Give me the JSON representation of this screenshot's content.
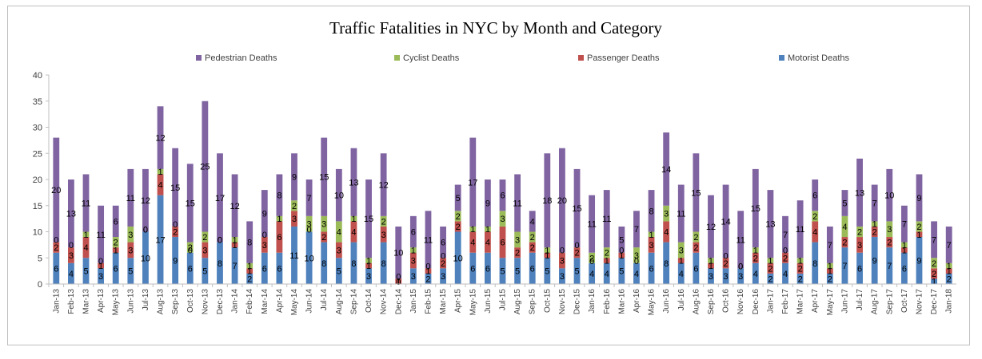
{
  "chart_data": {
    "type": "bar",
    "stacked": true,
    "title": "Traffic Fatalities  in NYC by Month and Category",
    "xlabel": "",
    "ylabel": "",
    "ylim": [
      0,
      40
    ],
    "yticks": [
      0,
      5,
      10,
      15,
      20,
      25,
      30,
      35,
      40
    ],
    "grid": false,
    "legend_position": "top",
    "legend_order": [
      "Pedestrian Deaths",
      "Cyclist Deaths",
      "Passenger Deaths",
      "Motorist Deaths"
    ],
    "categories": [
      "Jan-13",
      "Feb-13",
      "Mar-13",
      "Apr-13",
      "May-13",
      "Jun-13",
      "Jul-13",
      "Aug-13",
      "Sep-13",
      "Oct-13",
      "Nov-13",
      "Dec-13",
      "Jan-14",
      "Feb-14",
      "Mar-14",
      "Apr-14",
      "May-14",
      "Jun-14",
      "Jul-14",
      "Aug-14",
      "Sep-14",
      "Oct-14",
      "Nov-14",
      "Dec-14",
      "Jan-15",
      "Feb-15",
      "Mar-15",
      "Apr-15",
      "May-15",
      "Jun-15",
      "Jul-15",
      "Aug-15",
      "Sep-15",
      "Oct-15",
      "Nov-15",
      "Dec-15",
      "Jan-16",
      "Feb-16",
      "Mar-16",
      "Apr-16",
      "May-16",
      "Jun-16",
      "Jul-16",
      "Aug-16",
      "Sep-16",
      "Oct-16",
      "Nov-16",
      "Dec-16",
      "Jan-17",
      "Feb-17",
      "Mar-17",
      "Apr-17",
      "May-17",
      "Jun-17",
      "Jul-17",
      "Aug-17",
      "Sep-17",
      "Oct-17",
      "Nov-17",
      "Dec-17",
      "Jan-18"
    ],
    "series": [
      {
        "name": "Motorist Deaths",
        "color": "#4f81bd",
        "values": [
          6,
          4,
          5,
          3,
          6,
          5,
          10,
          17,
          9,
          6,
          5,
          8,
          7,
          2,
          6,
          6,
          11,
          10,
          8,
          5,
          8,
          3,
          8,
          0,
          3,
          2,
          3,
          10,
          6,
          6,
          5,
          5,
          6,
          5,
          3,
          5,
          4,
          4,
          5,
          4,
          6,
          8,
          4,
          6,
          3,
          3,
          3,
          4,
          2,
          4,
          2,
          8,
          2,
          7,
          6,
          9,
          7,
          6,
          9,
          1,
          2
        ]
      },
      {
        "name": "Passenger Deaths",
        "color": "#c0504d",
        "values": [
          2,
          3,
          4,
          1,
          1,
          3,
          0,
          4,
          2,
          0,
          3,
          0,
          1,
          1,
          3,
          6,
          3,
          0,
          2,
          3,
          4,
          1,
          3,
          1,
          3,
          1,
          2,
          2,
          4,
          4,
          6,
          2,
          2,
          1,
          3,
          2,
          0,
          1,
          1,
          0,
          3,
          4,
          1,
          2,
          1,
          2,
          0,
          2,
          2,
          2,
          2,
          4,
          1,
          2,
          3,
          2,
          2,
          1,
          1,
          2,
          1
        ]
      },
      {
        "name": "Cyclist Deaths",
        "color": "#9bbb59",
        "values": [
          0,
          0,
          1,
          0,
          2,
          3,
          0,
          1,
          0,
          2,
          2,
          0,
          1,
          1,
          0,
          1,
          2,
          3,
          3,
          4,
          1,
          1,
          2,
          0,
          1,
          0,
          0,
          2,
          1,
          1,
          3,
          3,
          2,
          1,
          0,
          0,
          2,
          2,
          0,
          3,
          1,
          3,
          3,
          2,
          1,
          0,
          0,
          1,
          1,
          0,
          1,
          2,
          1,
          4,
          2,
          1,
          3,
          1,
          2,
          2,
          1
        ]
      },
      {
        "name": "Pedestrian Deaths",
        "color": "#8064a2",
        "values": [
          20,
          13,
          11,
          11,
          6,
          11,
          12,
          12,
          15,
          15,
          25,
          17,
          12,
          8,
          9,
          8,
          9,
          7,
          15,
          10,
          13,
          15,
          12,
          10,
          6,
          11,
          6,
          5,
          17,
          9,
          6,
          11,
          4,
          18,
          20,
          15,
          11,
          11,
          5,
          7,
          8,
          14,
          11,
          15,
          12,
          14,
          11,
          15,
          13,
          7,
          11,
          6,
          7,
          5,
          13,
          7,
          10,
          7,
          9,
          7,
          7
        ]
      }
    ]
  }
}
